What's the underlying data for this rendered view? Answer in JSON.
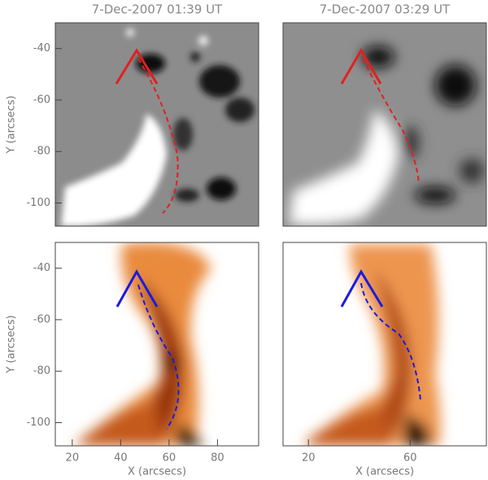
{
  "chart_data": [
    {
      "type": "image",
      "title": "7-Dec-2007 01:39 UT",
      "ylabel": "Y (arcsecs)",
      "ylim": [
        -109,
        -30
      ],
      "yticks": [
        -40,
        -60,
        -80,
        -100
      ]
    },
    {
      "type": "image",
      "title": "7-Dec-2007 03:29 UT"
    },
    {
      "type": "image",
      "xlabel": "X (arcsecs)",
      "ylabel": "Y (arcsecs)",
      "xlim": [
        13,
        97
      ],
      "ylim": [
        -109,
        -30
      ],
      "xticks": [
        20,
        40,
        60,
        80
      ],
      "yticks": [
        -40,
        -60,
        -80,
        -100
      ]
    },
    {
      "type": "image",
      "xlabel": "X (arcsecs)",
      "xlim": [
        10,
        90
      ],
      "xticks": [
        20,
        60
      ]
    }
  ]
}
